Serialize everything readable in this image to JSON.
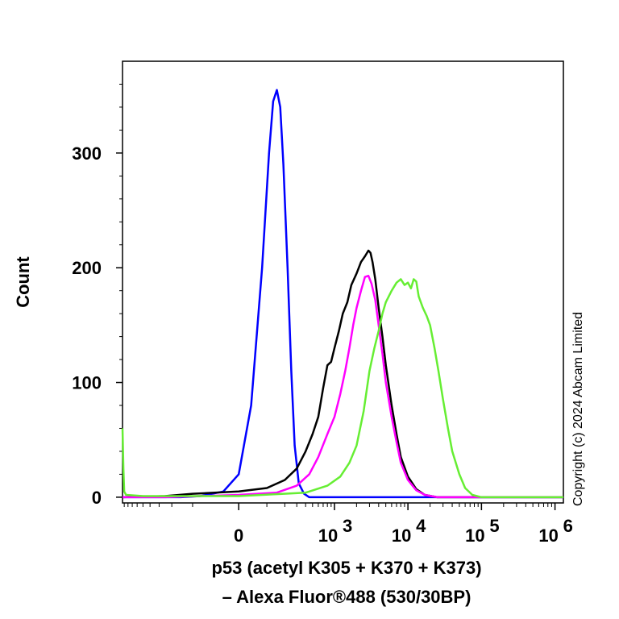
{
  "chart_data": {
    "type": "line",
    "title": "",
    "xlabel_line1": "p53 (acetyl K305 + K370 + K373)",
    "xlabel_line2": "– Alexa Fluor®488 (530/30BP)",
    "ylabel": "Count",
    "copyright": "Copyright (c) 2024 Abcam Limited",
    "xscale": "biexponential",
    "xlim": [
      -1900,
      1300000
    ],
    "ylim": [
      -5,
      380
    ],
    "y_ticks": [
      {
        "value": 0,
        "label": "0"
      },
      {
        "value": 100,
        "label": "100"
      },
      {
        "value": 200,
        "label": "200"
      },
      {
        "value": 300,
        "label": "300"
      }
    ],
    "x_ticks": [
      {
        "value": 0,
        "label": "0",
        "exp": ""
      },
      {
        "value": 1000,
        "label": "10",
        "exp": "3"
      },
      {
        "value": 10000,
        "label": "10",
        "exp": "4"
      },
      {
        "value": 100000,
        "label": "10",
        "exp": "5"
      },
      {
        "value": 1000000,
        "label": "10",
        "exp": "6"
      }
    ],
    "series": [
      {
        "color": "#0000ff",
        "points": [
          [
            -1900,
            0
          ],
          [
            -300,
            0
          ],
          [
            -150,
            1
          ],
          [
            -50,
            5
          ],
          [
            0,
            20
          ],
          [
            40,
            80
          ],
          [
            80,
            200
          ],
          [
            110,
            300
          ],
          [
            130,
            345
          ],
          [
            150,
            355
          ],
          [
            170,
            340
          ],
          [
            190,
            290
          ],
          [
            220,
            200
          ],
          [
            250,
            110
          ],
          [
            280,
            45
          ],
          [
            320,
            12
          ],
          [
            380,
            3
          ],
          [
            450,
            0
          ],
          [
            600,
            0
          ],
          [
            1300000,
            0
          ]
        ]
      },
      {
        "color": "#000000",
        "points": [
          [
            -1900,
            0
          ],
          [
            -500,
            1
          ],
          [
            -200,
            3
          ],
          [
            0,
            5
          ],
          [
            100,
            8
          ],
          [
            200,
            15
          ],
          [
            300,
            25
          ],
          [
            400,
            40
          ],
          [
            500,
            55
          ],
          [
            600,
            70
          ],
          [
            700,
            95
          ],
          [
            800,
            115
          ],
          [
            900,
            118
          ],
          [
            1000,
            130
          ],
          [
            1150,
            145
          ],
          [
            1300,
            160
          ],
          [
            1500,
            170
          ],
          [
            1700,
            185
          ],
          [
            2000,
            195
          ],
          [
            2300,
            205
          ],
          [
            2600,
            210
          ],
          [
            2900,
            215
          ],
          [
            3100,
            213
          ],
          [
            3300,
            205
          ],
          [
            3600,
            190
          ],
          [
            4000,
            165
          ],
          [
            4500,
            140
          ],
          [
            5000,
            115
          ],
          [
            6000,
            80
          ],
          [
            7000,
            55
          ],
          [
            8000,
            35
          ],
          [
            10000,
            18
          ],
          [
            13000,
            7
          ],
          [
            17000,
            2
          ],
          [
            25000,
            0
          ],
          [
            1300000,
            0
          ]
        ]
      },
      {
        "color": "#ff00ff",
        "points": [
          [
            -1900,
            0
          ],
          [
            -500,
            0
          ],
          [
            0,
            2
          ],
          [
            150,
            4
          ],
          [
            300,
            10
          ],
          [
            450,
            20
          ],
          [
            600,
            35
          ],
          [
            800,
            55
          ],
          [
            1000,
            70
          ],
          [
            1200,
            90
          ],
          [
            1400,
            110
          ],
          [
            1600,
            130
          ],
          [
            1800,
            150
          ],
          [
            2000,
            165
          ],
          [
            2300,
            180
          ],
          [
            2600,
            192
          ],
          [
            2900,
            193
          ],
          [
            3200,
            186
          ],
          [
            3600,
            172
          ],
          [
            4000,
            150
          ],
          [
            4500,
            125
          ],
          [
            5000,
            100
          ],
          [
            6000,
            70
          ],
          [
            7000,
            48
          ],
          [
            8000,
            30
          ],
          [
            10000,
            15
          ],
          [
            13000,
            6
          ],
          [
            17000,
            2
          ],
          [
            25000,
            0
          ],
          [
            1300000,
            0
          ]
        ]
      },
      {
        "color": "#66ee33",
        "points": [
          [
            -1900,
            60
          ],
          [
            -1850,
            25
          ],
          [
            -1800,
            5
          ],
          [
            -1700,
            2
          ],
          [
            -1000,
            1
          ],
          [
            0,
            1
          ],
          [
            400,
            4
          ],
          [
            800,
            10
          ],
          [
            1200,
            18
          ],
          [
            1600,
            30
          ],
          [
            2000,
            45
          ],
          [
            2500,
            75
          ],
          [
            3000,
            110
          ],
          [
            3500,
            130
          ],
          [
            4000,
            145
          ],
          [
            4500,
            160
          ],
          [
            5000,
            170
          ],
          [
            6000,
            180
          ],
          [
            7000,
            187
          ],
          [
            8000,
            190
          ],
          [
            9000,
            185
          ],
          [
            10000,
            187
          ],
          [
            11000,
            182
          ],
          [
            12000,
            190
          ],
          [
            13000,
            188
          ],
          [
            14000,
            175
          ],
          [
            16000,
            165
          ],
          [
            18000,
            158
          ],
          [
            20000,
            150
          ],
          [
            23000,
            130
          ],
          [
            26000,
            110
          ],
          [
            30000,
            85
          ],
          [
            35000,
            60
          ],
          [
            40000,
            40
          ],
          [
            50000,
            20
          ],
          [
            60000,
            8
          ],
          [
            75000,
            2
          ],
          [
            100000,
            0
          ],
          [
            1300000,
            0
          ]
        ]
      }
    ]
  }
}
